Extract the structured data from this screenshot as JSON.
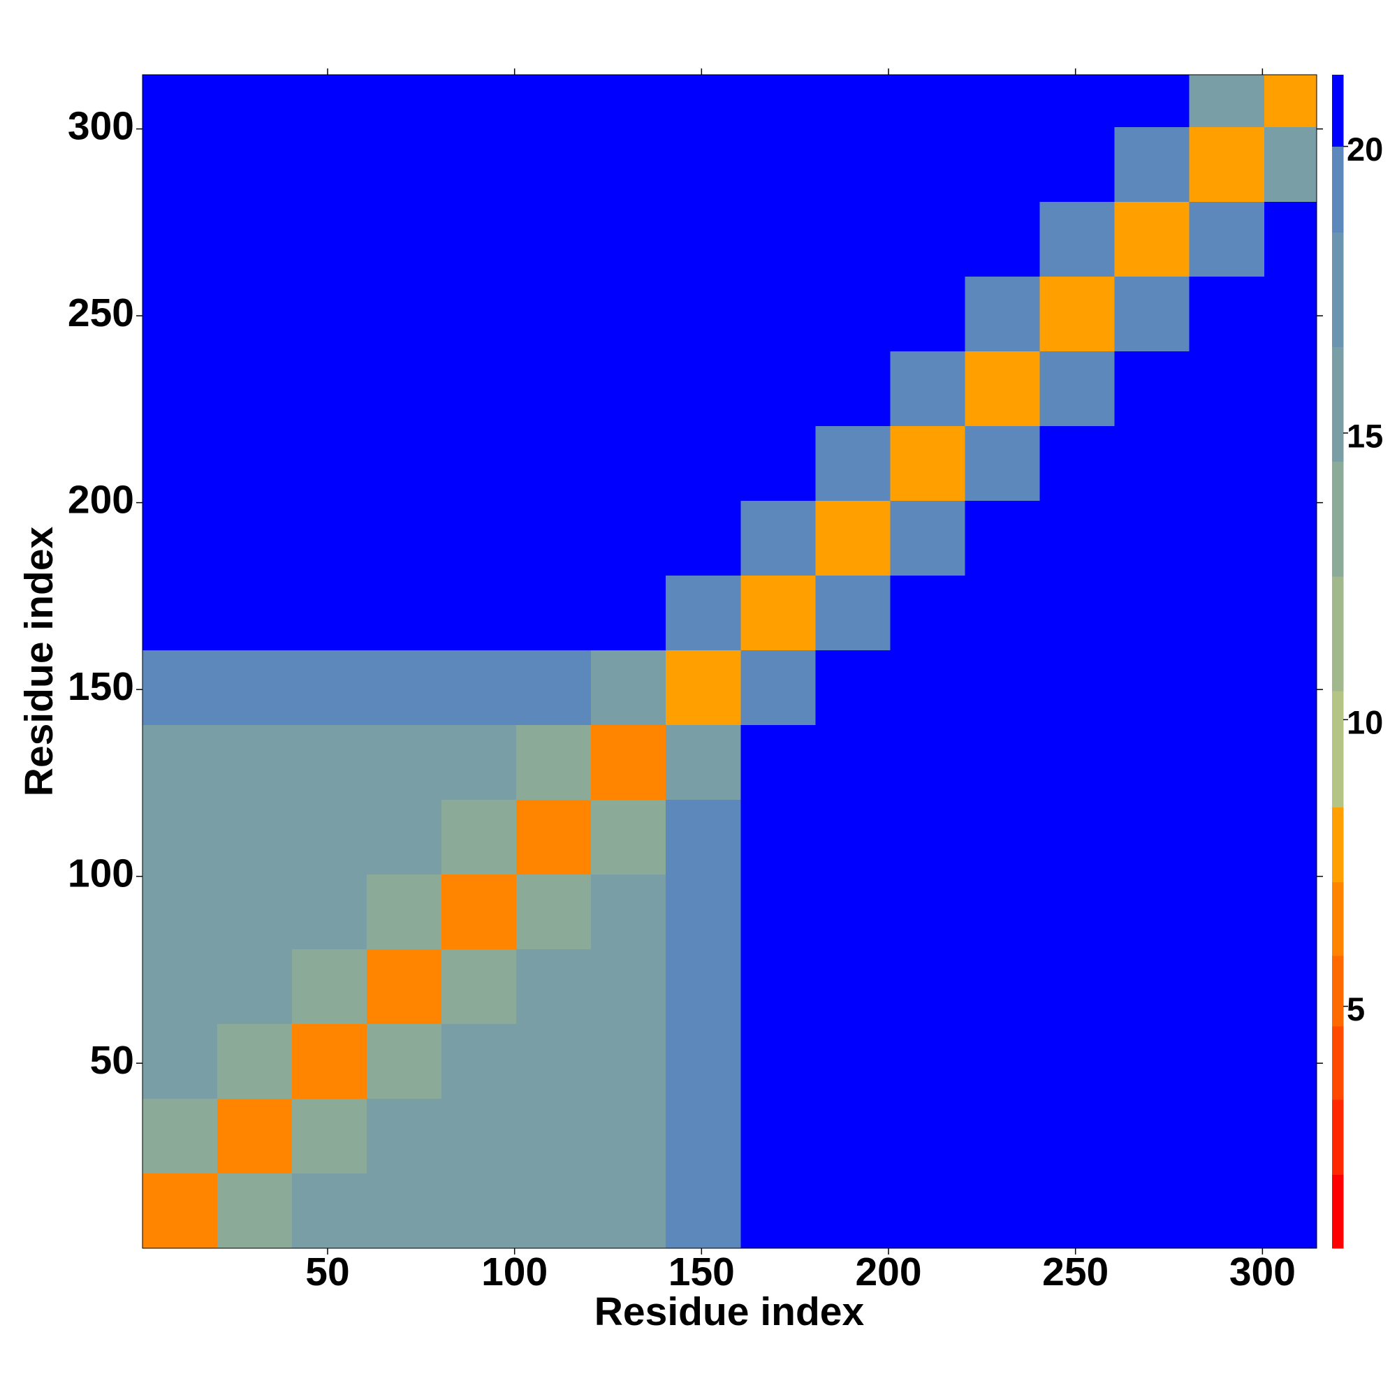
{
  "chart_data": {
    "type": "heatmap",
    "xlabel": "Residue index",
    "ylabel": "Residue index",
    "xlim": [
      0.5,
      314.5
    ],
    "ylim": [
      0.5,
      314.5
    ],
    "xticks": [
      50,
      100,
      150,
      200,
      250,
      300
    ],
    "yticks": [
      50,
      100,
      150,
      200,
      250,
      300
    ],
    "xbins": [
      0.5,
      20.5,
      40.5,
      60.5,
      80.5,
      100.5,
      120.5,
      140.5,
      160.5,
      180.5,
      200.5,
      220.5,
      240.5,
      260.5,
      280.5,
      300.5,
      314.5
    ],
    "ybins": [
      0.5,
      20.5,
      40.5,
      60.5,
      80.5,
      100.5,
      120.5,
      140.5,
      160.5,
      180.5,
      200.5,
      220.5,
      240.5,
      260.5,
      280.5,
      300.5,
      314.5
    ],
    "z": [
      [
        7,
        13,
        16,
        16,
        16,
        16,
        16,
        20,
        21,
        21,
        21,
        21,
        21,
        21,
        21,
        21
      ],
      [
        13,
        7,
        13,
        16,
        16,
        16,
        16,
        20,
        21,
        21,
        21,
        21,
        21,
        21,
        21,
        21
      ],
      [
        16,
        13,
        7,
        13,
        16,
        16,
        16,
        20,
        21,
        21,
        21,
        21,
        21,
        21,
        21,
        21
      ],
      [
        16,
        16,
        13,
        7,
        13,
        16,
        16,
        20,
        21,
        21,
        21,
        21,
        21,
        21,
        21,
        21
      ],
      [
        16,
        16,
        16,
        13,
        7,
        13,
        16,
        20,
        21,
        21,
        21,
        21,
        21,
        21,
        21,
        21
      ],
      [
        16,
        16,
        16,
        16,
        13,
        7,
        13,
        20,
        21,
        21,
        21,
        21,
        21,
        21,
        21,
        21
      ],
      [
        16,
        16,
        16,
        16,
        16,
        13,
        7,
        15,
        21,
        21,
        21,
        21,
        21,
        21,
        21,
        21
      ],
      [
        20,
        20,
        20,
        20,
        20,
        20,
        15,
        8,
        19,
        21,
        21,
        21,
        21,
        21,
        21,
        21
      ],
      [
        21,
        21,
        21,
        21,
        21,
        21,
        21,
        19,
        8,
        19,
        21,
        21,
        21,
        21,
        21,
        21
      ],
      [
        21,
        21,
        21,
        21,
        21,
        21,
        21,
        21,
        19,
        8,
        19,
        21,
        20.5,
        21,
        21,
        21
      ],
      [
        21,
        21,
        21,
        21,
        21,
        21,
        21,
        21,
        21,
        19,
        8,
        19,
        21,
        21,
        21,
        21
      ],
      [
        21,
        21,
        21,
        21,
        21,
        21,
        21,
        21,
        21,
        21,
        19,
        8,
        19,
        21,
        21,
        21
      ],
      [
        21,
        21,
        21,
        21,
        21,
        21,
        21,
        21,
        21,
        20.5,
        21,
        19,
        8,
        19,
        21,
        21
      ],
      [
        21,
        21,
        21,
        21,
        21,
        21,
        21,
        21,
        21,
        21,
        21,
        21,
        19,
        8,
        19,
        21
      ],
      [
        21,
        21,
        21,
        21,
        21,
        21,
        21,
        21,
        21,
        21,
        21,
        21,
        21,
        19,
        8,
        16
      ],
      [
        21,
        21,
        21,
        21,
        21,
        21,
        21,
        21,
        21,
        21,
        21,
        21,
        21,
        21,
        16,
        8
      ]
    ],
    "colorbar": {
      "levels": [
        0.78,
        2.06,
        3.37,
        4.65,
        5.88,
        7.17,
        8.47,
        10.5,
        12.5,
        14.5,
        16.5,
        18.5,
        20,
        21.25
      ],
      "colors": [
        "#ff0000",
        "#ff2800",
        "#ff4a00",
        "#ff6a00",
        "#ff8400",
        "#ffa000",
        "#b4c484",
        "#a0b88c",
        "#8caa98",
        "#7a9ea6",
        "#6a94b0",
        "#5c88bc",
        "#0000ff"
      ],
      "ticks": [
        5,
        10,
        15,
        20
      ]
    }
  }
}
